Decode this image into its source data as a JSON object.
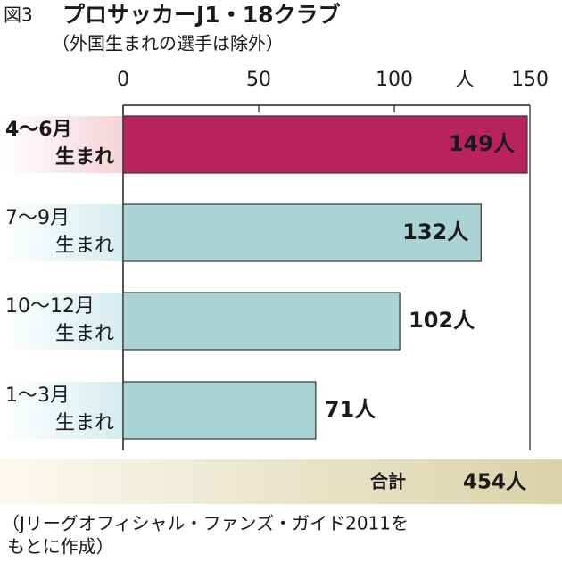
{
  "chart_data": {
    "type": "bar",
    "orientation": "horizontal",
    "figure_label": "図3",
    "title": "プロサッカーJ1・18クラブ",
    "subtitle": "（外国生まれの選手は除外）",
    "x_unit": "人",
    "categories": [
      [
        "4〜6月",
        "生まれ"
      ],
      [
        "7〜9月",
        "生まれ"
      ],
      [
        "10〜12月",
        "生まれ"
      ],
      [
        "1〜3月",
        "生まれ"
      ]
    ],
    "values": [
      149,
      132,
      102,
      71
    ],
    "value_labels": [
      "149人",
      "132人",
      "102人",
      "71人"
    ],
    "colors": [
      "#b82459",
      "#a9d4d3",
      "#a9d4d3",
      "#a9d4d3"
    ],
    "category_colors": [
      "#f3d3da",
      "#d6ecee",
      "#d6ecee",
      "#d6ecee"
    ],
    "xlim": [
      0,
      150
    ],
    "xticks": [
      0,
      50,
      100,
      150
    ],
    "total_label": "合計",
    "total": "454人",
    "source": [
      "（Jリーグオフィシャル・ファンズ・ガイド2011を",
      "もとに作成）"
    ]
  }
}
